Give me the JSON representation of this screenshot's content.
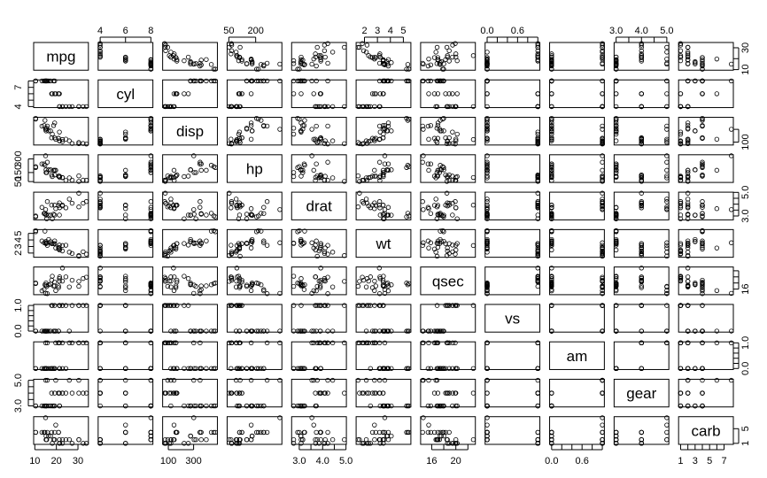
{
  "chart_data": {
    "type": "scatter",
    "title": "",
    "variables": [
      "mpg",
      "cyl",
      "disp",
      "hp",
      "drat",
      "wt",
      "qsec",
      "vs",
      "am",
      "gear",
      "carb"
    ],
    "ranges": {
      "mpg": [
        10.4,
        33.9
      ],
      "cyl": [
        4,
        8
      ],
      "disp": [
        71.1,
        472
      ],
      "hp": [
        52,
        335
      ],
      "drat": [
        2.76,
        4.93
      ],
      "wt": [
        1.513,
        5.424
      ],
      "qsec": [
        14.5,
        22.9
      ],
      "vs": [
        0,
        1
      ],
      "am": [
        0,
        1
      ],
      "gear": [
        3,
        5
      ],
      "carb": [
        1,
        8
      ]
    },
    "axis_ticks": {
      "top": {
        "cyl": [
          {
            "v": 4,
            "label": "4"
          },
          {
            "v": 6,
            "label": "6"
          },
          {
            "v": 8,
            "label": "8"
          }
        ],
        "hp": [
          {
            "v": 50,
            "label": "50"
          },
          {
            "v": 200,
            "label": "200"
          }
        ],
        "wt": [
          {
            "v": 2,
            "label": "2"
          },
          {
            "v": 3,
            "label": "3"
          },
          {
            "v": 4,
            "label": "4"
          },
          {
            "v": 5,
            "label": "5"
          }
        ],
        "vs": [
          {
            "v": 0,
            "label": "0.0"
          },
          {
            "v": 0.2,
            "label": ""
          },
          {
            "v": 0.4,
            "label": ""
          },
          {
            "v": 0.6,
            "label": "0.6"
          },
          {
            "v": 0.8,
            "label": ""
          },
          {
            "v": 1,
            "label": ""
          }
        ],
        "gear": [
          {
            "v": 3,
            "label": "3.0"
          },
          {
            "v": 3.5,
            "label": ""
          },
          {
            "v": 4,
            "label": "4.0"
          },
          {
            "v": 4.5,
            "label": ""
          },
          {
            "v": 5,
            "label": "5.0"
          }
        ]
      },
      "bottom": {
        "mpg": [
          {
            "v": 10,
            "label": "10"
          },
          {
            "v": 20,
            "label": "20"
          },
          {
            "v": 30,
            "label": "30"
          }
        ],
        "disp": [
          {
            "v": 100,
            "label": "100"
          },
          {
            "v": 300,
            "label": "300"
          }
        ],
        "drat": [
          {
            "v": 3,
            "label": "3.0"
          },
          {
            "v": 3.5,
            "label": ""
          },
          {
            "v": 4,
            "label": "4.0"
          },
          {
            "v": 4.5,
            "label": ""
          },
          {
            "v": 5,
            "label": "5.0"
          }
        ],
        "qsec": [
          {
            "v": 16,
            "label": "16"
          },
          {
            "v": 18,
            "label": ""
          },
          {
            "v": 20,
            "label": "20"
          },
          {
            "v": 22,
            "label": ""
          }
        ],
        "am": [
          {
            "v": 0,
            "label": "0.0"
          },
          {
            "v": 0.2,
            "label": ""
          },
          {
            "v": 0.4,
            "label": ""
          },
          {
            "v": 0.6,
            "label": "0.6"
          },
          {
            "v": 0.8,
            "label": ""
          },
          {
            "v": 1,
            "label": ""
          }
        ],
        "carb": [
          {
            "v": 1,
            "label": "1"
          },
          {
            "v": 2,
            "label": ""
          },
          {
            "v": 3,
            "label": "3"
          },
          {
            "v": 4,
            "label": ""
          },
          {
            "v": 5,
            "label": "5"
          },
          {
            "v": 6,
            "label": ""
          },
          {
            "v": 7,
            "label": "7"
          }
        ]
      },
      "left": {
        "cyl": [
          {
            "v": 4,
            "label": "4"
          },
          {
            "v": 5,
            "label": ""
          },
          {
            "v": 6,
            "label": ""
          },
          {
            "v": 7,
            "label": "7"
          },
          {
            "v": 8,
            "label": ""
          }
        ],
        "hp": [
          {
            "v": 50,
            "label": "50"
          },
          {
            "v": 150,
            "label": "150"
          },
          {
            "v": 300,
            "label": "300"
          }
        ],
        "wt": [
          {
            "v": 2,
            "label": "2"
          },
          {
            "v": 3,
            "label": "3"
          },
          {
            "v": 4,
            "label": "4"
          },
          {
            "v": 5,
            "label": "5"
          }
        ],
        "vs": [
          {
            "v": 0,
            "label": "0.0"
          },
          {
            "v": 0.2,
            "label": ""
          },
          {
            "v": 0.4,
            "label": ""
          },
          {
            "v": 0.6,
            "label": ""
          },
          {
            "v": 0.8,
            "label": ""
          },
          {
            "v": 1,
            "label": "1.0"
          }
        ],
        "gear": [
          {
            "v": 3,
            "label": "3.0"
          },
          {
            "v": 3.5,
            "label": ""
          },
          {
            "v": 4,
            "label": ""
          },
          {
            "v": 4.5,
            "label": ""
          },
          {
            "v": 5,
            "label": "5.0"
          }
        ]
      },
      "right": {
        "mpg": [
          {
            "v": 10,
            "label": "10"
          },
          {
            "v": 20,
            "label": ""
          },
          {
            "v": 30,
            "label": "30"
          }
        ],
        "disp": [
          {
            "v": 100,
            "label": "100"
          },
          {
            "v": 300,
            "label": ""
          }
        ],
        "drat": [
          {
            "v": 3,
            "label": "3.0"
          },
          {
            "v": 3.5,
            "label": ""
          },
          {
            "v": 4,
            "label": ""
          },
          {
            "v": 4.5,
            "label": ""
          },
          {
            "v": 5,
            "label": "5.0"
          }
        ],
        "qsec": [
          {
            "v": 16,
            "label": "16"
          },
          {
            "v": 18,
            "label": ""
          },
          {
            "v": 20,
            "label": ""
          },
          {
            "v": 22,
            "label": ""
          }
        ],
        "am": [
          {
            "v": 0,
            "label": "0.0"
          },
          {
            "v": 0.2,
            "label": ""
          },
          {
            "v": 0.4,
            "label": ""
          },
          {
            "v": 0.6,
            "label": ""
          },
          {
            "v": 0.8,
            "label": ""
          },
          {
            "v": 1,
            "label": "1.0"
          }
        ],
        "carb": [
          {
            "v": 1,
            "label": "1"
          },
          {
            "v": 5,
            "label": "5"
          }
        ]
      }
    },
    "data": {
      "mpg": [
        21.0,
        21.0,
        22.8,
        21.4,
        18.7,
        18.1,
        14.3,
        24.4,
        22.8,
        19.2,
        17.8,
        16.4,
        17.3,
        15.2,
        10.4,
        10.4,
        14.7,
        32.4,
        30.4,
        33.9,
        21.5,
        15.5,
        15.2,
        13.3,
        19.2,
        27.3,
        26.0,
        30.4,
        15.8,
        19.7,
        15.0,
        21.4
      ],
      "cyl": [
        6,
        6,
        4,
        6,
        8,
        6,
        8,
        4,
        4,
        6,
        6,
        8,
        8,
        8,
        8,
        8,
        8,
        4,
        4,
        4,
        4,
        8,
        8,
        8,
        8,
        4,
        4,
        4,
        8,
        6,
        8,
        4
      ],
      "disp": [
        160,
        160,
        108,
        258,
        360,
        225,
        360,
        146.7,
        140.8,
        167.6,
        167.6,
        275.8,
        275.8,
        275.8,
        472,
        460,
        440,
        78.7,
        75.7,
        71.1,
        120.1,
        318,
        304,
        350,
        400,
        79,
        120.3,
        95.1,
        351,
        145,
        301,
        121
      ],
      "hp": [
        110,
        110,
        93,
        110,
        175,
        105,
        245,
        62,
        95,
        123,
        123,
        180,
        180,
        180,
        205,
        215,
        230,
        66,
        52,
        65,
        97,
        150,
        150,
        245,
        175,
        66,
        91,
        113,
        264,
        175,
        335,
        109
      ],
      "drat": [
        3.9,
        3.9,
        3.85,
        3.08,
        3.15,
        2.76,
        3.21,
        3.69,
        3.92,
        3.92,
        3.92,
        3.07,
        3.07,
        3.07,
        2.93,
        3.0,
        3.23,
        4.08,
        4.93,
        4.22,
        3.7,
        2.76,
        3.15,
        3.73,
        3.08,
        4.08,
        4.43,
        3.77,
        4.22,
        3.62,
        3.54,
        4.11
      ],
      "wt": [
        2.62,
        2.875,
        2.32,
        3.215,
        3.44,
        3.46,
        3.57,
        3.19,
        3.15,
        3.44,
        3.44,
        4.07,
        3.73,
        3.78,
        5.25,
        5.424,
        5.345,
        2.2,
        1.615,
        1.835,
        2.465,
        3.52,
        3.435,
        3.84,
        3.845,
        1.935,
        2.14,
        1.513,
        3.17,
        2.77,
        3.57,
        2.78
      ],
      "qsec": [
        16.46,
        17.02,
        18.61,
        19.44,
        17.02,
        20.22,
        15.84,
        20.0,
        22.9,
        18.3,
        18.9,
        17.4,
        17.6,
        18.0,
        17.98,
        17.82,
        17.42,
        19.47,
        18.52,
        19.9,
        20.01,
        16.87,
        17.3,
        15.41,
        17.05,
        18.9,
        16.7,
        16.9,
        14.5,
        15.5,
        14.6,
        18.6
      ],
      "vs": [
        0,
        0,
        1,
        1,
        0,
        1,
        0,
        1,
        1,
        1,
        1,
        0,
        0,
        0,
        0,
        0,
        0,
        1,
        1,
        1,
        1,
        0,
        0,
        0,
        0,
        1,
        0,
        1,
        0,
        0,
        0,
        1
      ],
      "am": [
        1,
        1,
        1,
        0,
        0,
        0,
        0,
        0,
        0,
        0,
        0,
        0,
        0,
        0,
        0,
        0,
        0,
        1,
        1,
        1,
        0,
        0,
        0,
        0,
        0,
        1,
        1,
        1,
        1,
        1,
        1,
        1
      ],
      "gear": [
        4,
        4,
        4,
        3,
        3,
        3,
        3,
        4,
        4,
        4,
        4,
        3,
        3,
        3,
        3,
        3,
        3,
        4,
        4,
        4,
        3,
        3,
        3,
        3,
        3,
        4,
        5,
        5,
        5,
        5,
        5,
        4
      ],
      "carb": [
        4,
        4,
        1,
        1,
        2,
        1,
        4,
        2,
        2,
        4,
        4,
        3,
        3,
        3,
        4,
        4,
        4,
        1,
        2,
        1,
        1,
        2,
        2,
        4,
        2,
        1,
        2,
        2,
        4,
        6,
        8,
        2
      ]
    }
  }
}
